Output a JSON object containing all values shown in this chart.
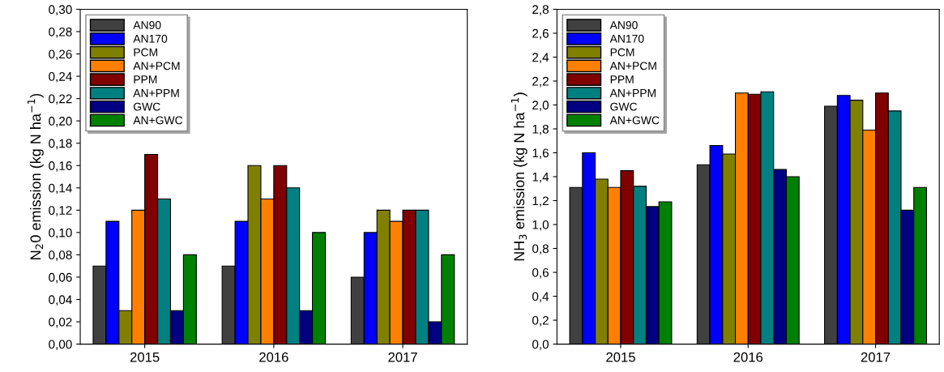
{
  "chart_data": [
    {
      "type": "bar",
      "ylabel": "N$_{2}$0 emission (kg N ha$^{−1}$)",
      "categories": [
        "2015",
        "2016",
        "2017"
      ],
      "series": [
        {
          "name": "AN90",
          "color": "#404040",
          "values": [
            0.07,
            0.07,
            0.06
          ]
        },
        {
          "name": "AN170",
          "color": "#0000ff",
          "values": [
            0.11,
            0.11,
            0.1
          ]
        },
        {
          "name": "PCM",
          "color": "#808000",
          "values": [
            0.03,
            0.16,
            0.12
          ]
        },
        {
          "name": "AN+PCM",
          "color": "#ff8000",
          "values": [
            0.12,
            0.13,
            0.11
          ]
        },
        {
          "name": "PPM",
          "color": "#800000",
          "values": [
            0.17,
            0.16,
            0.12
          ]
        },
        {
          "name": "AN+PPM",
          "color": "#008080",
          "values": [
            0.13,
            0.14,
            0.12
          ]
        },
        {
          "name": "GWC",
          "color": "#000080",
          "values": [
            0.03,
            0.03,
            0.02
          ]
        },
        {
          "name": "AN+GWC",
          "color": "#008000",
          "values": [
            0.08,
            0.1,
            0.08
          ]
        }
      ],
      "ylim": [
        0,
        0.3
      ],
      "yticks": [
        {
          "value": 0,
          "label": "0,00"
        },
        {
          "value": 0.02,
          "label": "0,02"
        },
        {
          "value": 0.04,
          "label": "0,04"
        },
        {
          "value": 0.06,
          "label": "0,06"
        },
        {
          "value": 0.08,
          "label": "0,08"
        },
        {
          "value": 0.1,
          "label": "0,10"
        },
        {
          "value": 0.12,
          "label": "0,12"
        },
        {
          "value": 0.14,
          "label": "0,14"
        },
        {
          "value": 0.16,
          "label": "0,16"
        },
        {
          "value": 0.18,
          "label": "0,18"
        },
        {
          "value": 0.2,
          "label": "0,20"
        },
        {
          "value": 0.22,
          "label": "0,22"
        },
        {
          "value": 0.24,
          "label": "0,24"
        },
        {
          "value": 0.26,
          "label": "0,26"
        },
        {
          "value": 0.28,
          "label": "0,28"
        },
        {
          "value": 0.3,
          "label": "0,30"
        }
      ],
      "legend": "top left",
      "grid": false
    },
    {
      "type": "bar",
      "ylabel": "NH$_{3}$ emission (kg N ha$^{−1}$)",
      "categories": [
        "2015",
        "2016",
        "2017"
      ],
      "series": [
        {
          "name": "AN90",
          "color": "#404040",
          "values": [
            1.31,
            1.5,
            1.99
          ]
        },
        {
          "name": "AN170",
          "color": "#0000ff",
          "values": [
            1.6,
            1.66,
            2.08
          ]
        },
        {
          "name": "PCM",
          "color": "#808000",
          "values": [
            1.38,
            1.59,
            2.04
          ]
        },
        {
          "name": "AN+PCM",
          "color": "#ff8000",
          "values": [
            1.31,
            2.1,
            1.79
          ]
        },
        {
          "name": "PPM",
          "color": "#800000",
          "values": [
            1.45,
            2.09,
            2.1
          ]
        },
        {
          "name": "AN+PPM",
          "color": "#008080",
          "values": [
            1.32,
            2.11,
            1.95
          ]
        },
        {
          "name": "GWC",
          "color": "#000080",
          "values": [
            1.15,
            1.46,
            1.12
          ]
        },
        {
          "name": "AN+GWC",
          "color": "#008000",
          "values": [
            1.19,
            1.4,
            1.31
          ]
        }
      ],
      "ylim": [
        0,
        2.8
      ],
      "yticks": [
        {
          "value": 0,
          "label": "0,0"
        },
        {
          "value": 0.2,
          "label": "0,2"
        },
        {
          "value": 0.4,
          "label": "0,4"
        },
        {
          "value": 0.6,
          "label": "0,6"
        },
        {
          "value": 0.8,
          "label": "0,8"
        },
        {
          "value": 1.0,
          "label": "1,0"
        },
        {
          "value": 1.2,
          "label": "1,2"
        },
        {
          "value": 1.4,
          "label": "1,4"
        },
        {
          "value": 1.6,
          "label": "1,6"
        },
        {
          "value": 1.8,
          "label": "1,8"
        },
        {
          "value": 2.0,
          "label": "2,0"
        },
        {
          "value": 2.2,
          "label": "2,2"
        },
        {
          "value": 2.4,
          "label": "2,4"
        },
        {
          "value": 2.6,
          "label": "2,6"
        },
        {
          "value": 2.8,
          "label": "2,8"
        }
      ],
      "legend": "top left",
      "grid": false
    }
  ]
}
